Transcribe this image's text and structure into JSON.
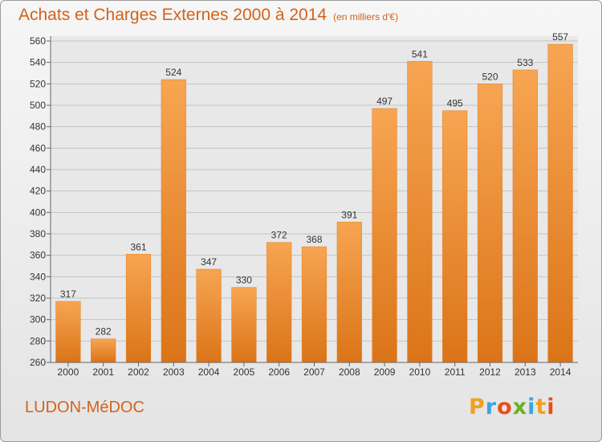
{
  "chart_data": {
    "type": "bar",
    "title": "Achats et Charges Externes 2000 à 2014",
    "subtitle": "(en milliers d'€)",
    "categories": [
      "2000",
      "2001",
      "2002",
      "2003",
      "2004",
      "2005",
      "2006",
      "2007",
      "2008",
      "2009",
      "2010",
      "2011",
      "2012",
      "2013",
      "2014"
    ],
    "values": [
      317,
      282,
      361,
      524,
      347,
      330,
      372,
      368,
      391,
      497,
      541,
      495,
      520,
      533,
      557
    ],
    "ylim": [
      260,
      560
    ],
    "yticks": [
      260,
      280,
      300,
      320,
      340,
      360,
      380,
      400,
      420,
      440,
      460,
      480,
      500,
      520,
      540,
      560
    ],
    "grid": true,
    "bar_color": "#f0922f"
  },
  "footer": {
    "commune": "LUDON-MéDOC",
    "brand_letters": [
      "P",
      "r",
      "o",
      "x",
      "i",
      "t",
      "i"
    ],
    "brand_colors": [
      "#f0a020",
      "#3aa7e0",
      "#e94e1b",
      "#6ab023",
      "#3aa7e0",
      "#f0a020",
      "#e94e1b"
    ]
  }
}
